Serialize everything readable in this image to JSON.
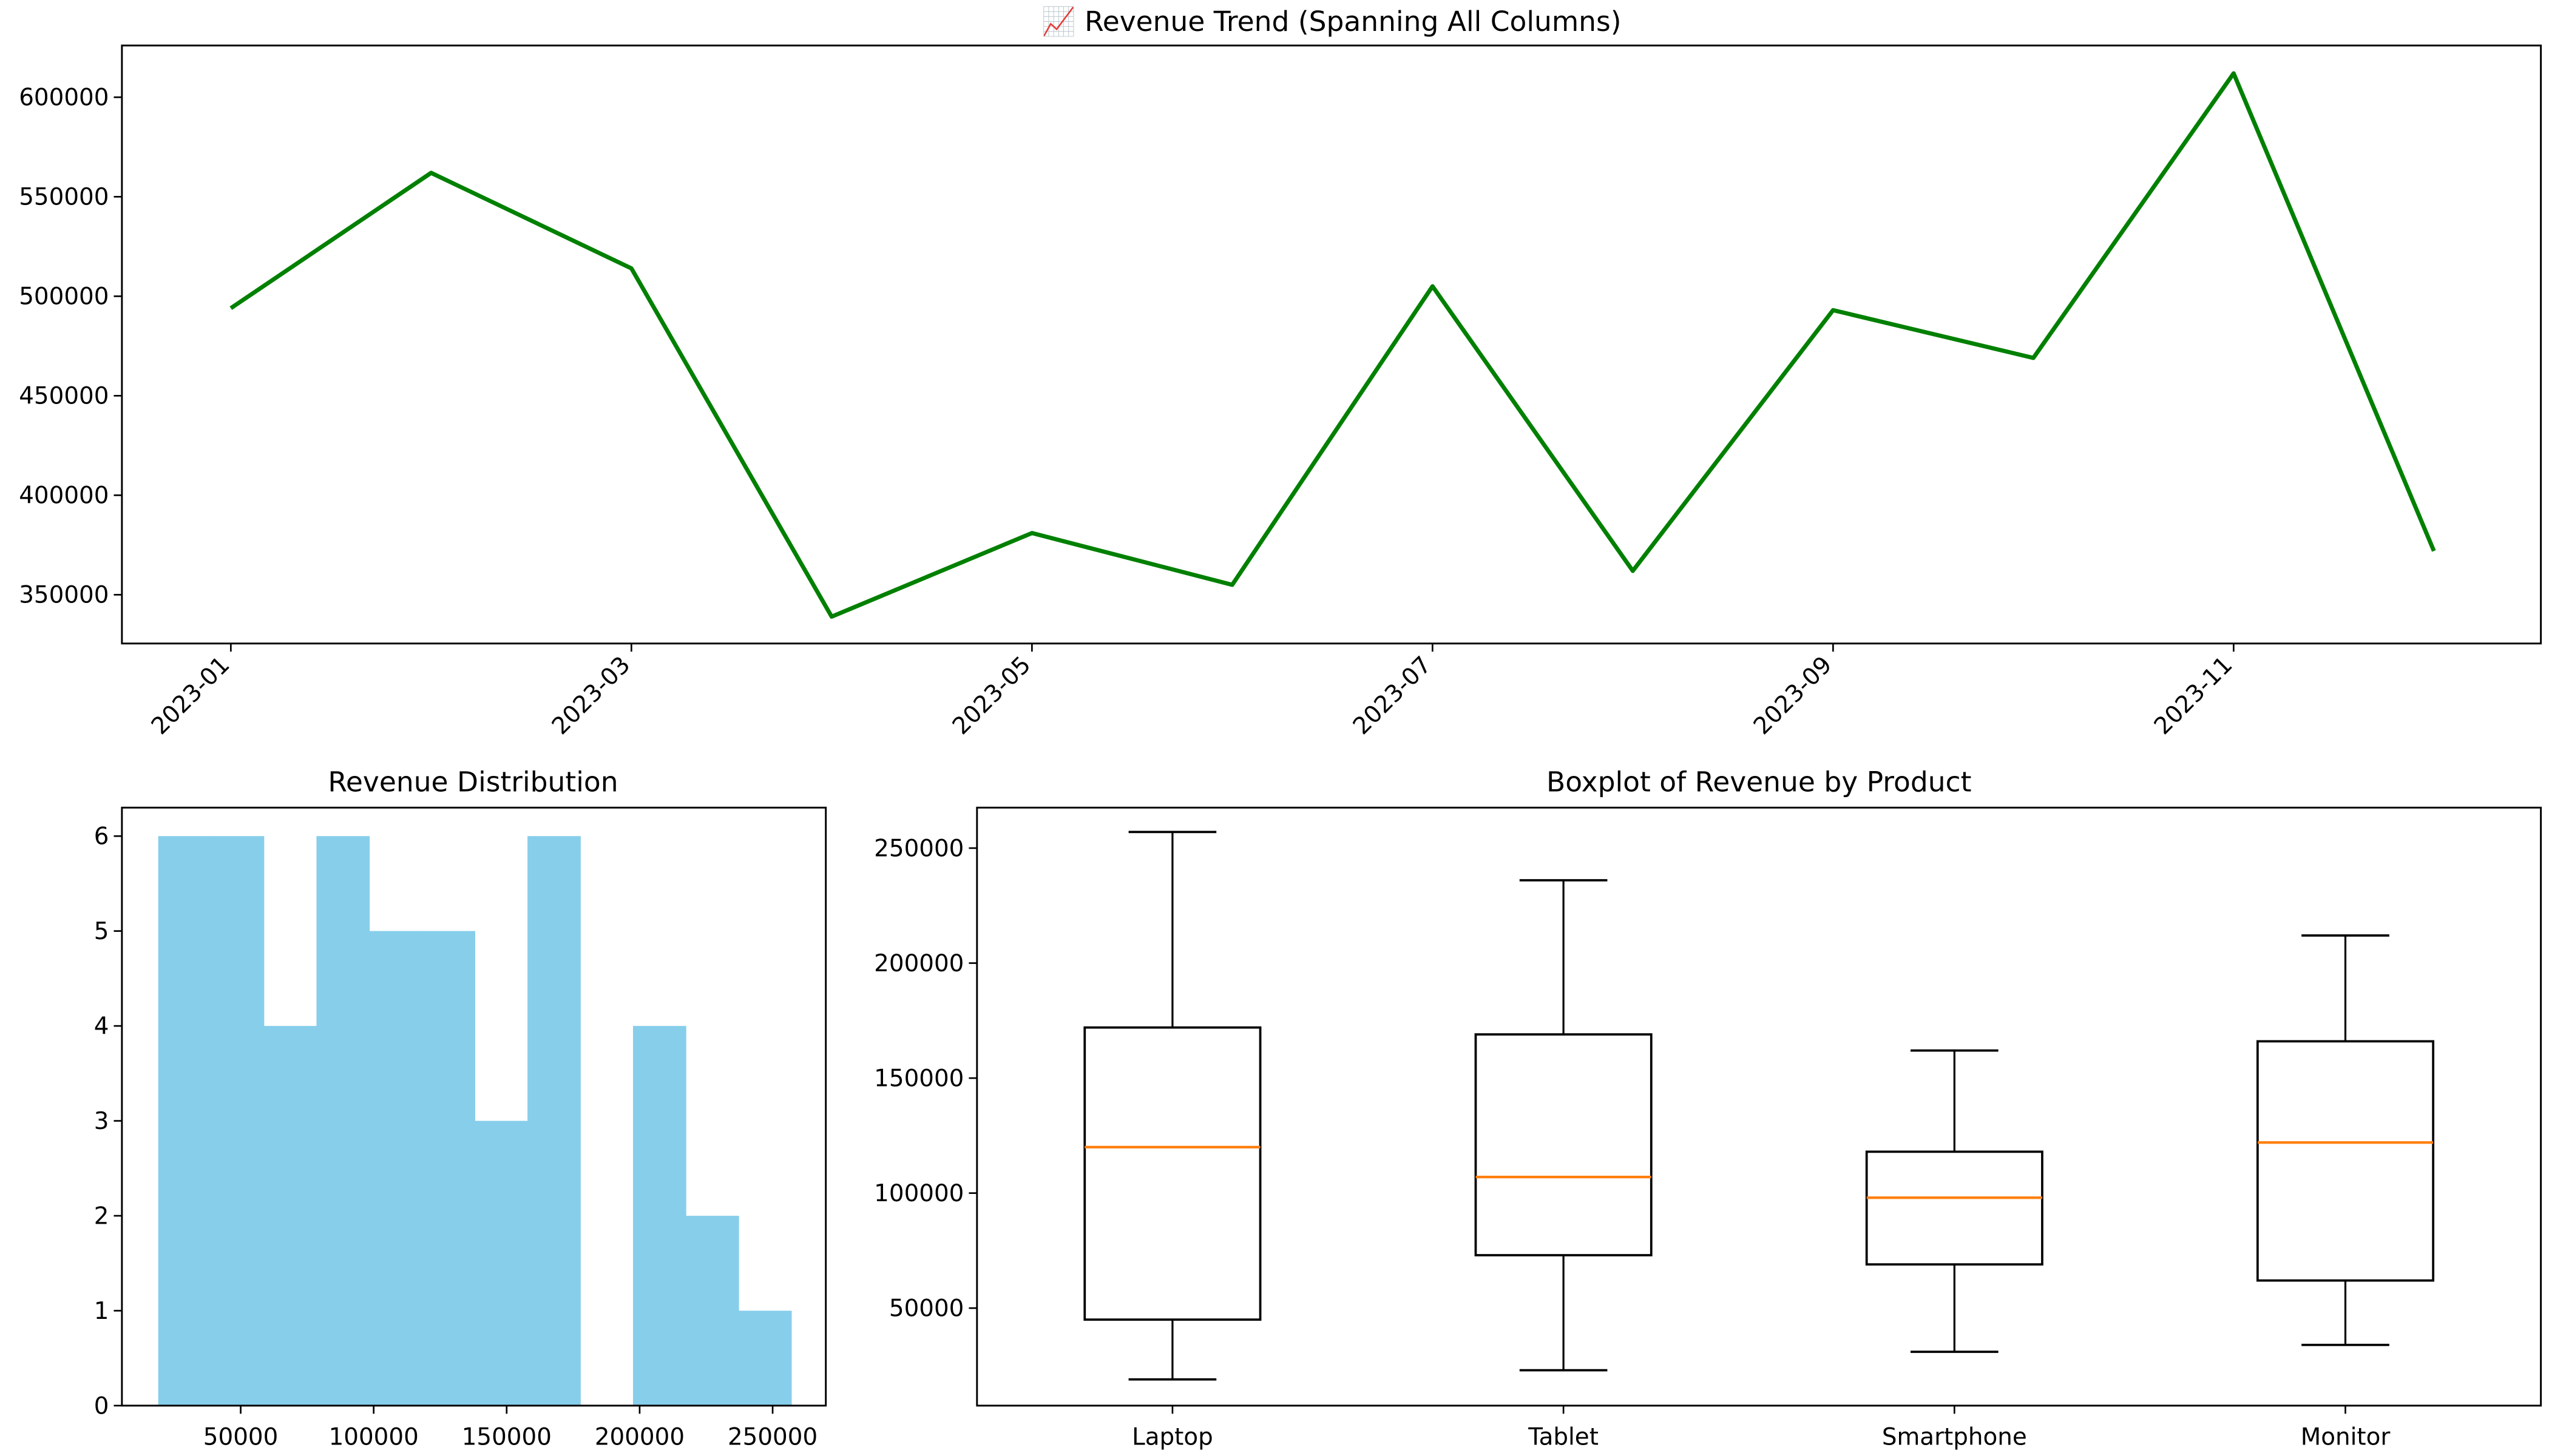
{
  "chart_data": [
    {
      "type": "line",
      "title": "📈 Revenue Trend (Spanning All Columns)",
      "x": [
        "2023-01",
        "2023-02",
        "2023-03",
        "2023-04",
        "2023-05",
        "2023-06",
        "2023-07",
        "2023-08",
        "2023-09",
        "2023-10",
        "2023-11",
        "2023-12"
      ],
      "xtick_labels": [
        "2023-01",
        "2023-03",
        "2023-05",
        "2023-07",
        "2023-09",
        "2023-11"
      ],
      "y": [
        494000,
        562000,
        514000,
        339000,
        381000,
        355000,
        505000,
        362000,
        493000,
        469000,
        612000,
        372000
      ],
      "yticks": [
        350000,
        400000,
        450000,
        500000,
        550000,
        600000
      ],
      "ylim": [
        325500,
        626000
      ],
      "color": "#008000",
      "grid": false
    },
    {
      "type": "bar",
      "subtype": "histogram",
      "title": "Revenue Distribution",
      "bin_range": [
        19000,
        257000
      ],
      "counts": [
        6,
        6,
        4,
        6,
        5,
        5,
        3,
        6,
        0,
        4,
        2,
        1
      ],
      "xticks": [
        50000,
        100000,
        150000,
        200000,
        250000
      ],
      "yticks": [
        0,
        1,
        2,
        3,
        4,
        5,
        6
      ],
      "xlim": [
        5350,
        270000
      ],
      "ylim": [
        0,
        6.3
      ],
      "color": "#87CEEB"
    },
    {
      "type": "boxplot",
      "title": "Boxplot of Revenue by Product",
      "categories": [
        "Laptop",
        "Tablet",
        "Smartphone",
        "Monitor"
      ],
      "boxes": [
        {
          "whislo": 19000,
          "q1": 45000,
          "med": 120000,
          "q3": 172000,
          "whishi": 257000
        },
        {
          "whislo": 23000,
          "q1": 73000,
          "med": 107000,
          "q3": 169000,
          "whishi": 236000
        },
        {
          "whislo": 31000,
          "q1": 69000,
          "med": 98000,
          "q3": 118000,
          "whishi": 162000
        },
        {
          "whislo": 34000,
          "q1": 62000,
          "med": 122000,
          "q3": 166000,
          "whishi": 212000
        }
      ],
      "yticks": [
        50000,
        100000,
        150000,
        200000,
        250000
      ],
      "ylim": [
        7600,
        267600
      ],
      "median_color": "#FF7F0E"
    }
  ]
}
